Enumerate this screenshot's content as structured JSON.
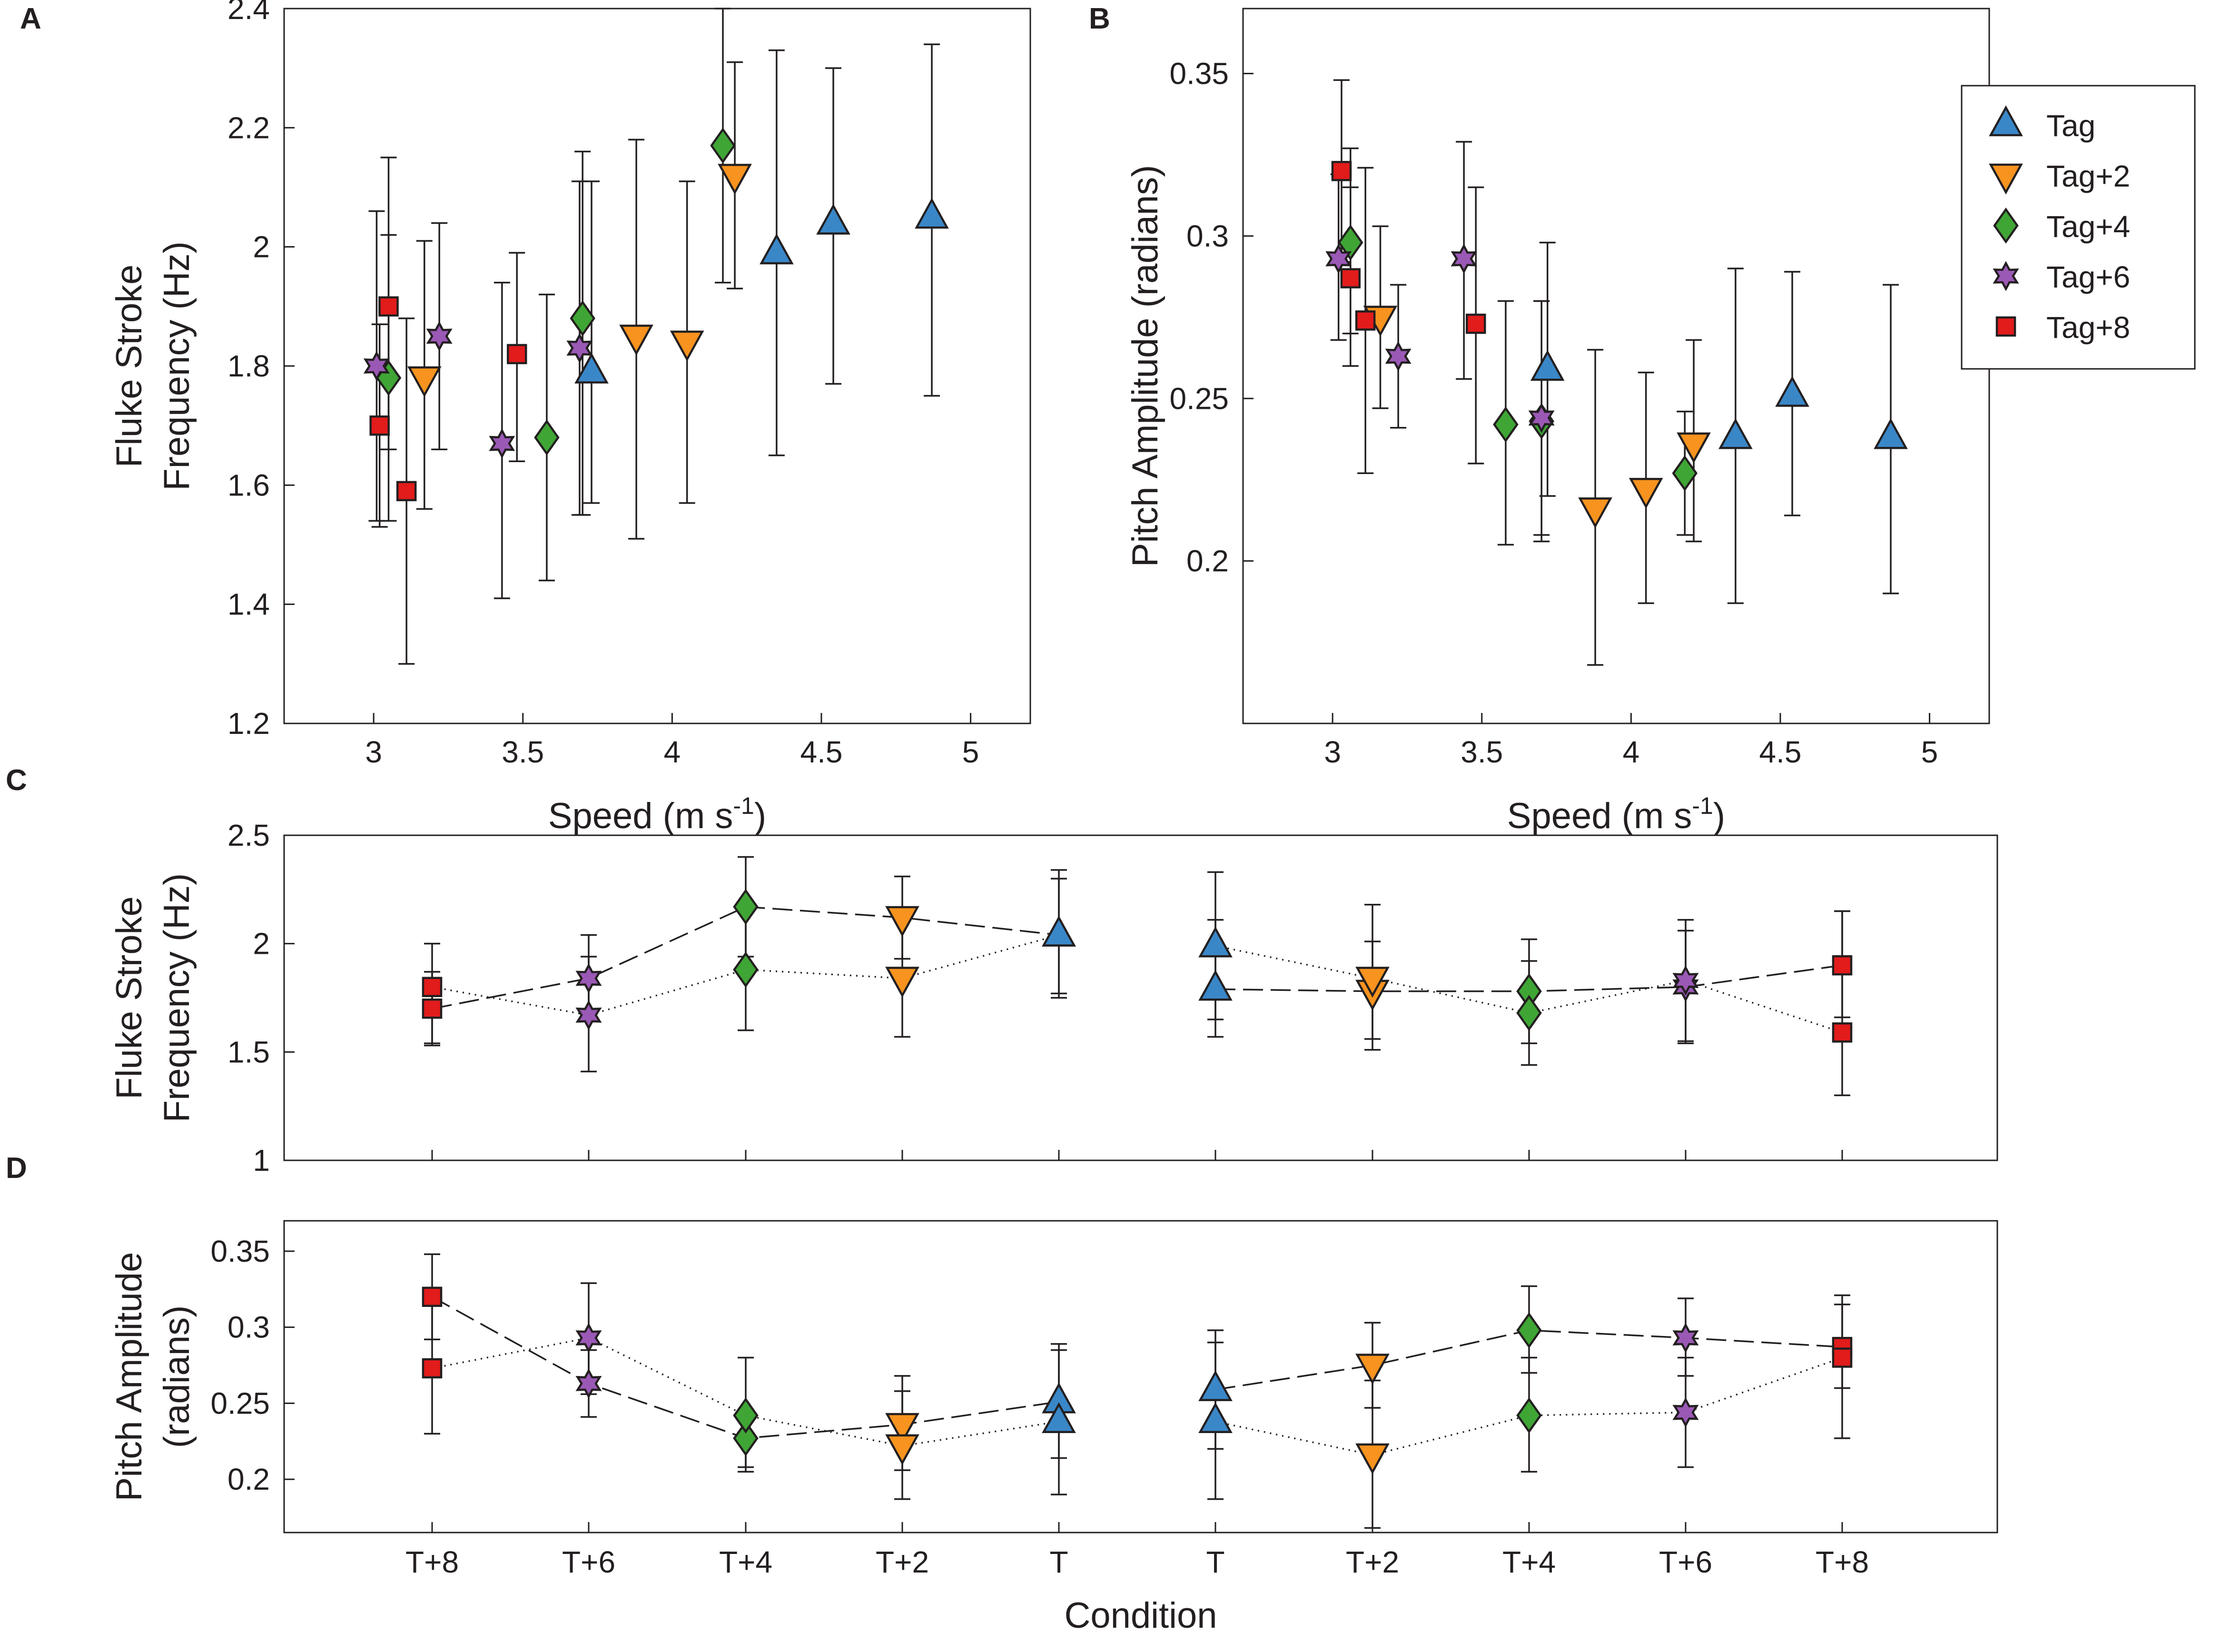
{
  "colors": {
    "Tag": "#3a87c8",
    "Tag+2": "#f7931e",
    "Tag+4": "#3fa535",
    "Tag+6": "#9b59b6",
    "Tag+8": "#e21b1b",
    "axis": "#231f20"
  },
  "legend": {
    "entries": [
      {
        "name": "Tag",
        "marker": "triangle-up"
      },
      {
        "name": "Tag+2",
        "marker": "triangle-down"
      },
      {
        "name": "Tag+4",
        "marker": "diamond"
      },
      {
        "name": "Tag+6",
        "marker": "hexagram"
      },
      {
        "name": "Tag+8",
        "marker": "square"
      }
    ]
  },
  "chart_data": [
    {
      "panel": "A",
      "type": "scatter",
      "xlabel": "Speed (m s",
      "xlabel_sup": "-1",
      "xlabel_end": ")",
      "ylabel_lines": [
        "Fluke Stroke",
        "Frequency (Hz)"
      ],
      "xlim": [
        2.7,
        5.2
      ],
      "ylim": [
        1.2,
        2.4
      ],
      "xticks": [
        3,
        3.5,
        4,
        4.5,
        5
      ],
      "xtick_labels": [
        "3",
        "3.5",
        "4",
        "4.5",
        "5"
      ],
      "yticks": [
        1.2,
        1.4,
        1.6,
        1.8,
        2.0,
        2.2,
        2.4
      ],
      "ytick_labels": [
        "1.2",
        "1.4",
        "1.6",
        "1.8",
        "2",
        "2.2",
        "2.4"
      ],
      "series": [
        {
          "name": "Tag",
          "points": [
            [
              3.73,
              1.79,
              1.57,
              2.11
            ],
            [
              4.35,
              1.99,
              1.65,
              2.33
            ],
            [
              4.54,
              2.04,
              1.77,
              2.3
            ],
            [
              4.87,
              2.05,
              1.75,
              2.34
            ]
          ]
        },
        {
          "name": "Tag+2",
          "points": [
            [
              3.17,
              1.78,
              1.56,
              2.01
            ],
            [
              3.88,
              1.85,
              1.51,
              2.18
            ],
            [
              4.05,
              1.84,
              1.57,
              2.11
            ],
            [
              4.21,
              2.12,
              1.93,
              2.31
            ]
          ]
        },
        {
          "name": "Tag+4",
          "points": [
            [
              3.05,
              1.78,
              1.54,
              2.02
            ],
            [
              3.58,
              1.68,
              1.44,
              1.92
            ],
            [
              3.7,
              1.88,
              1.55,
              2.16
            ],
            [
              4.17,
              2.17,
              1.94,
              2.4
            ]
          ]
        },
        {
          "name": "Tag+6",
          "points": [
            [
              3.01,
              1.8,
              1.54,
              2.06
            ],
            [
              3.22,
              1.85,
              1.66,
              2.04
            ],
            [
              3.43,
              1.67,
              1.41,
              1.94
            ],
            [
              3.69,
              1.83,
              1.55,
              2.11
            ]
          ]
        },
        {
          "name": "Tag+8",
          "points": [
            [
              3.02,
              1.7,
              1.53,
              1.87
            ],
            [
              3.05,
              1.9,
              1.66,
              2.15
            ],
            [
              3.11,
              1.59,
              1.3,
              1.88
            ],
            [
              3.48,
              1.82,
              1.64,
              1.99
            ]
          ]
        }
      ]
    },
    {
      "panel": "B",
      "type": "scatter",
      "xlabel": "Speed (m s",
      "xlabel_sup": "-1",
      "xlabel_end": ")",
      "ylabel_lines": [
        "Pitch Amplitude (radians)"
      ],
      "xlim": [
        2.7,
        5.2
      ],
      "ylim": [
        0.15,
        0.37
      ],
      "xticks": [
        3,
        3.5,
        4,
        4.5,
        5
      ],
      "xtick_labels": [
        "3",
        "3.5",
        "4",
        "4.5",
        "5"
      ],
      "yticks": [
        0.2,
        0.25,
        0.3,
        0.35
      ],
      "ytick_labels": [
        "0.2",
        "0.25",
        "0.3",
        "0.35"
      ],
      "series": [
        {
          "name": "Tag",
          "points": [
            [
              3.72,
              0.259,
              0.22,
              0.298
            ],
            [
              4.35,
              0.238,
              0.187,
              0.29
            ],
            [
              4.54,
              0.251,
              0.214,
              0.289
            ],
            [
              4.87,
              0.238,
              0.19,
              0.285
            ]
          ]
        },
        {
          "name": "Tag+2",
          "points": [
            [
              3.16,
              0.275,
              0.247,
              0.303
            ],
            [
              3.88,
              0.216,
              0.168,
              0.265
            ],
            [
              4.05,
              0.222,
              0.187,
              0.258
            ],
            [
              4.21,
              0.236,
              0.206,
              0.268
            ]
          ]
        },
        {
          "name": "Tag+4",
          "points": [
            [
              3.06,
              0.298,
              0.27,
              0.327
            ],
            [
              3.58,
              0.242,
              0.205,
              0.28
            ],
            [
              3.7,
              0.243,
              0.206,
              0.28
            ],
            [
              4.18,
              0.227,
              0.208,
              0.246
            ]
          ]
        },
        {
          "name": "Tag+6",
          "points": [
            [
              3.02,
              0.293,
              0.268,
              0.319
            ],
            [
              3.22,
              0.263,
              0.241,
              0.285
            ],
            [
              3.44,
              0.293,
              0.256,
              0.329
            ],
            [
              3.7,
              0.244,
              0.208,
              0.28
            ]
          ]
        },
        {
          "name": "Tag+8",
          "points": [
            [
              3.03,
              0.32,
              0.292,
              0.348
            ],
            [
              3.06,
              0.287,
              0.26,
              0.315
            ],
            [
              3.11,
              0.274,
              0.227,
              0.321
            ],
            [
              3.48,
              0.273,
              0.23,
              0.315
            ]
          ]
        }
      ]
    },
    {
      "panel": "C",
      "type": "line",
      "ylabel_lines": [
        "Fluke Stroke",
        "Frequency (Hz)"
      ],
      "categories": [
        "T+8",
        "T+6",
        "T+4",
        "T+2",
        "T",
        "T",
        "T+2",
        "T+4",
        "T+6",
        "T+8"
      ],
      "ylim": [
        1,
        2.5
      ],
      "yticks": [
        1,
        1.5,
        2,
        2.5
      ],
      "ytick_labels": [
        "1",
        "1.5",
        "2",
        "2.5"
      ],
      "category_series": [
        "Tag+8",
        "Tag+6",
        "Tag+4",
        "Tag+2",
        "Tag",
        "Tag",
        "Tag+2",
        "Tag+4",
        "Tag+6",
        "Tag+8"
      ],
      "lines": [
        {
          "style": "dashed",
          "values": [
            1.7,
            1.84,
            2.17,
            2.12,
            2.04,
            1.79,
            1.78,
            1.78,
            1.8,
            1.9
          ],
          "lo": [
            1.53,
            1.66,
            1.94,
            1.93,
            1.75,
            1.57,
            1.56,
            1.54,
            1.54,
            1.66
          ],
          "hi": [
            1.87,
            2.04,
            2.4,
            2.31,
            2.34,
            2.11,
            2.01,
            2.02,
            2.06,
            2.15
          ]
        },
        {
          "style": "dotted",
          "values": [
            1.8,
            1.67,
            1.88,
            1.84,
            2.04,
            1.99,
            1.84,
            1.68,
            1.83,
            1.59
          ],
          "lo": [
            1.54,
            1.41,
            1.6,
            1.57,
            1.77,
            1.65,
            1.51,
            1.44,
            1.55,
            1.3
          ],
          "hi": [
            2.0,
            1.94,
            2.16,
            2.11,
            2.3,
            2.33,
            2.18,
            1.92,
            2.11,
            2.15
          ]
        }
      ]
    },
    {
      "panel": "D",
      "type": "line",
      "xlabel": "Condition",
      "ylabel_lines": [
        "Pitch Amplitude",
        "(radians)"
      ],
      "categories": [
        "T+8",
        "T+6",
        "T+4",
        "T+2",
        "T",
        "T",
        "T+2",
        "T+4",
        "T+6",
        "T+8"
      ],
      "ylim": [
        0.165,
        0.37
      ],
      "yticks": [
        0.2,
        0.25,
        0.3,
        0.35
      ],
      "ytick_labels": [
        "0.2",
        "0.25",
        "0.3",
        "0.35"
      ],
      "category_series": [
        "Tag+8",
        "Tag+6",
        "Tag+4",
        "Tag+2",
        "Tag",
        "Tag",
        "Tag+2",
        "Tag+4",
        "Tag+6",
        "Tag+8"
      ],
      "lines": [
        {
          "style": "dashed",
          "values": [
            0.32,
            0.263,
            0.227,
            0.236,
            0.251,
            0.259,
            0.275,
            0.298,
            0.293,
            0.287
          ],
          "lo": [
            0.292,
            0.241,
            0.208,
            0.206,
            0.214,
            0.22,
            0.247,
            0.27,
            0.268,
            0.26
          ],
          "hi": [
            0.348,
            0.285,
            0.246,
            0.268,
            0.289,
            0.298,
            0.303,
            0.327,
            0.319,
            0.315
          ]
        },
        {
          "style": "dotted",
          "values": [
            0.273,
            0.293,
            0.242,
            0.222,
            0.238,
            0.238,
            0.216,
            0.242,
            0.244,
            0.28
          ],
          "lo": [
            0.23,
            0.256,
            0.205,
            0.187,
            0.19,
            0.187,
            0.168,
            0.205,
            0.208,
            0.227
          ],
          "hi": [
            0.315,
            0.329,
            0.28,
            0.258,
            0.285,
            0.29,
            0.265,
            0.28,
            0.28,
            0.321
          ]
        }
      ]
    }
  ]
}
